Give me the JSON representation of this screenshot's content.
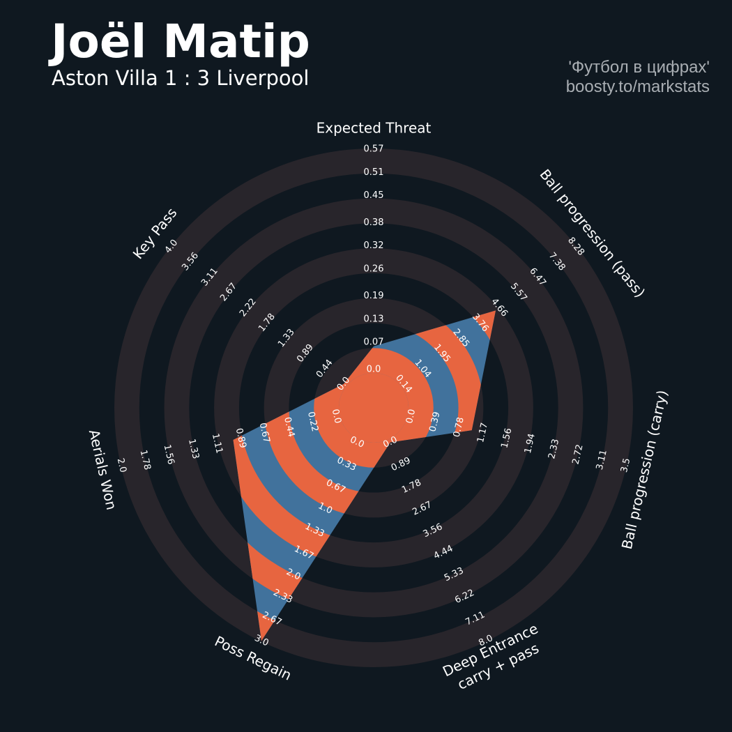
{
  "chart_data": {
    "type": "radar",
    "title": "Joël Matip",
    "subtitle": "Aston Villa 1 : 3 Liverpool",
    "credits": [
      "'Футбол в цифрах'",
      "boosty.to/markstats"
    ],
    "color": "#41729c",
    "band_color": "#e76540",
    "ring_color": "#28252b",
    "axes": [
      {
        "name": "Expected Threat",
        "lim": [
          0,
          0.57
        ],
        "ticks": [
          {
            "value": 0,
            "label": "0.0"
          },
          0.07,
          0.13,
          0.19,
          0.26,
          0.32,
          0.38,
          0.45,
          0.51,
          0.57
        ]
      },
      {
        "name": "Ball progression (pass)",
        "lim": [
          0.14,
          8.28
        ],
        "ticks": [
          0.14,
          1.04,
          1.95,
          2.85,
          3.76,
          4.66,
          5.57,
          6.47,
          7.38,
          8.28
        ]
      },
      {
        "name": "Ball progression (carry)",
        "lim": [
          0,
          3.5
        ],
        "ticks": [
          {
            "value": 0,
            "label": "0.0"
          },
          0.39,
          0.78,
          1.17,
          1.56,
          1.94,
          2.33,
          2.72,
          3.11,
          3.5
        ]
      },
      {
        "name": [
          "Deep Entrance",
          "carry + pass"
        ],
        "lim": [
          0,
          8
        ],
        "ticks": [
          {
            "value": 0,
            "label": "0.0"
          },
          0.89,
          1.78,
          2.67,
          3.56,
          4.44,
          5.33,
          6.22,
          7.11,
          {
            "value": 8,
            "label": "8.0"
          }
        ]
      },
      {
        "name": "Poss Regain",
        "lim": [
          0,
          3
        ],
        "ticks": [
          {
            "value": 0,
            "label": "0.0"
          },
          0.33,
          0.67,
          {
            "value": 1,
            "label": "1.0"
          },
          1.33,
          1.67,
          {
            "value": 2,
            "label": "2.0"
          },
          2.33,
          2.67,
          {
            "value": 3,
            "label": "3.0"
          }
        ]
      },
      {
        "name": "Aerials Won",
        "lim": [
          0,
          2
        ],
        "ticks": [
          {
            "value": 0,
            "label": "0.0"
          },
          0.22,
          0.44,
          0.67,
          0.89,
          1.11,
          1.33,
          1.56,
          1.78,
          {
            "value": 2,
            "label": "2.0"
          }
        ]
      },
      {
        "name": "Key Pass",
        "lim": [
          0,
          4
        ],
        "ticks": [
          {
            "value": 0,
            "label": "0.0"
          },
          0.44,
          0.89,
          1.33,
          1.78,
          2.22,
          2.67,
          3.11,
          3.56,
          {
            "value": 4,
            "label": "4.0"
          }
        ]
      }
    ],
    "values": [
      0.06,
      4.49,
      0.99,
      0,
      3,
      0.96,
      0
    ]
  }
}
